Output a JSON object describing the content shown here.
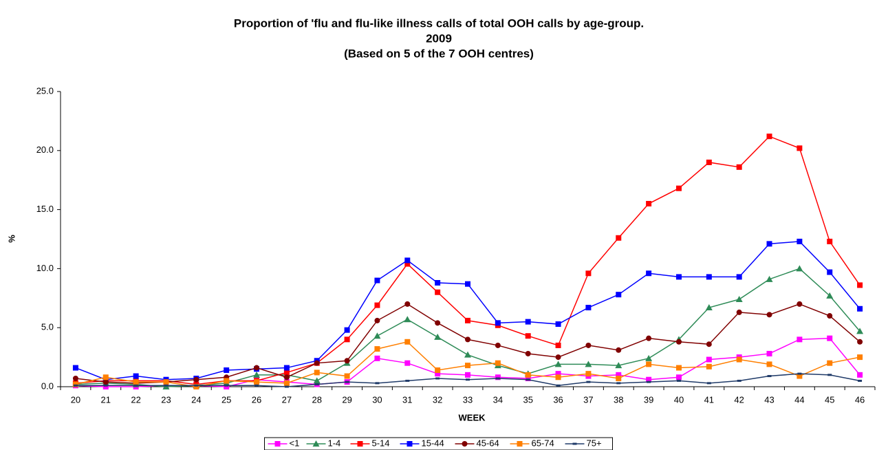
{
  "chart_data": {
    "type": "line",
    "title": [
      "Proportion of 'flu and flu-like illness calls of total OOH calls by age-group.",
      "2009",
      "(Based on 5 of the 7 OOH centres)"
    ],
    "x_label": "WEEK",
    "y_label": "%",
    "categories": [
      "20",
      "21",
      "22",
      "23",
      "24",
      "25",
      "26",
      "27",
      "28",
      "29",
      "30",
      "31",
      "32",
      "33",
      "34",
      "35",
      "36",
      "37",
      "38",
      "39",
      "40",
      "41",
      "42",
      "43",
      "44",
      "45",
      "46"
    ],
    "ylim": [
      0,
      25
    ],
    "yticks": [
      {
        "value": 0,
        "label": "0.0"
      },
      {
        "value": 5,
        "label": "5.0"
      },
      {
        "value": 10,
        "label": "10.0"
      },
      {
        "value": 15,
        "label": "15.0"
      },
      {
        "value": 20,
        "label": "20.0"
      },
      {
        "value": 25,
        "label": "25.0"
      }
    ],
    "legend": "bottom",
    "series": [
      {
        "name": "<1",
        "color": "#ff00ff",
        "marker": "square",
        "values": [
          0.1,
          0.0,
          0.0,
          0.1,
          0.1,
          0.0,
          0.6,
          0.4,
          0.2,
          0.4,
          2.4,
          2.0,
          1.1,
          1.0,
          0.8,
          0.7,
          1.1,
          0.9,
          1.0,
          0.6,
          0.8,
          2.3,
          2.5,
          2.8,
          4.0,
          4.1,
          1.0
        ]
      },
      {
        "name": "1-4",
        "color": "#2e8b57",
        "marker": "triangle",
        "values": [
          0.2,
          0.3,
          0.2,
          0.0,
          0.1,
          0.3,
          1.0,
          1.0,
          0.5,
          2.0,
          4.3,
          5.7,
          4.2,
          2.7,
          1.8,
          1.1,
          1.9,
          1.9,
          1.8,
          2.4,
          4.0,
          6.7,
          7.4,
          9.1,
          10.0,
          7.7,
          4.7
        ]
      },
      {
        "name": "5-14",
        "color": "#ff0000",
        "marker": "square",
        "values": [
          0.3,
          0.5,
          0.5,
          0.5,
          0.2,
          0.5,
          0.5,
          1.2,
          2.0,
          4.0,
          6.9,
          10.4,
          8.0,
          5.6,
          5.2,
          4.3,
          3.5,
          9.6,
          12.6,
          15.5,
          16.8,
          19.0,
          18.6,
          21.2,
          20.2,
          12.3,
          8.6
        ]
      },
      {
        "name": "15-44",
        "color": "#0000ff",
        "marker": "square",
        "values": [
          1.6,
          0.6,
          0.9,
          0.6,
          0.7,
          1.4,
          1.5,
          1.6,
          2.2,
          4.8,
          9.0,
          10.7,
          8.8,
          8.7,
          5.4,
          5.5,
          5.3,
          6.7,
          7.8,
          9.6,
          9.3,
          9.3,
          9.3,
          12.1,
          12.3,
          9.7,
          6.6
        ]
      },
      {
        "name": "45-64",
        "color": "#800000",
        "marker": "circle",
        "values": [
          0.7,
          0.4,
          0.3,
          0.4,
          0.6,
          0.8,
          1.6,
          0.8,
          2.0,
          2.2,
          5.6,
          7.0,
          5.4,
          4.0,
          3.5,
          2.8,
          2.5,
          3.5,
          3.1,
          4.1,
          3.8,
          3.6,
          6.3,
          6.1,
          7.0,
          6.0,
          3.8
        ]
      },
      {
        "name": "65-74",
        "color": "#ff7f00",
        "marker": "square",
        "values": [
          0.2,
          0.8,
          0.4,
          0.4,
          0.0,
          0.5,
          0.4,
          0.3,
          1.2,
          0.9,
          3.2,
          3.8,
          1.4,
          1.8,
          2.0,
          1.0,
          0.8,
          1.1,
          0.7,
          1.9,
          1.6,
          1.7,
          2.3,
          1.9,
          0.9,
          2.0,
          2.5
        ]
      },
      {
        "name": "75+",
        "color": "#1f3a68",
        "marker": "dash",
        "values": [
          0.1,
          0.1,
          0.1,
          0.1,
          0.1,
          0.1,
          0.1,
          0.0,
          0.2,
          0.4,
          0.3,
          0.5,
          0.7,
          0.6,
          0.7,
          0.6,
          0.1,
          0.4,
          0.3,
          0.4,
          0.5,
          0.3,
          0.5,
          0.9,
          1.1,
          1.0,
          0.5
        ]
      }
    ]
  }
}
